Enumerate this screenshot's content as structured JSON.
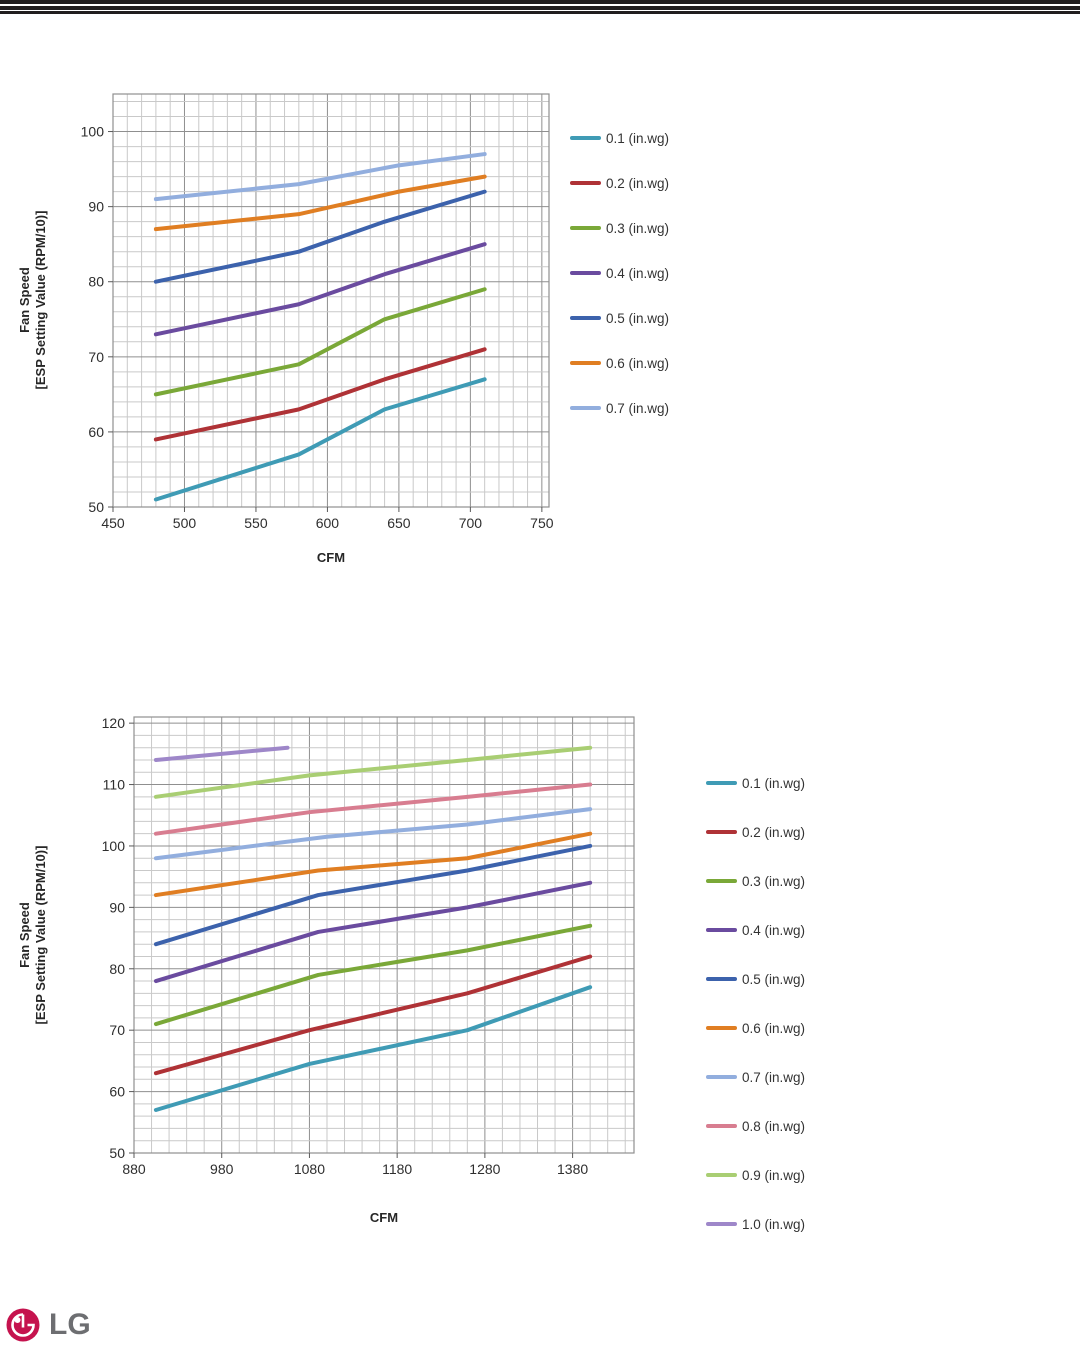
{
  "page": {
    "description": "Fan performance document page with two CFM vs fan-speed line charts and LG logo"
  },
  "logo": {
    "text": "LG",
    "circle_color": "#C5134E",
    "text_color": "#6D6E71"
  },
  "chart_data": [
    {
      "type": "line",
      "title": "",
      "xlabel": "CFM",
      "ylabel_lines": [
        "Fan Speed",
        "[ESP Setting Value (RPM/10)]"
      ],
      "xlim": [
        450,
        755
      ],
      "ylim": [
        50,
        105
      ],
      "x_major": 50,
      "x_minor": 10,
      "y_major": 10,
      "y_minor": 2,
      "x_ticks": [
        450,
        500,
        550,
        600,
        650,
        700,
        750
      ],
      "y_ticks": [
        50,
        60,
        70,
        80,
        90,
        100
      ],
      "grid": "both",
      "legend_position": "right",
      "series": [
        {
          "name": "0.1 (in.wg)",
          "color": "#3F9BB5",
          "points": [
            [
              480,
              51
            ],
            [
              580,
              57
            ],
            [
              640,
              63
            ],
            [
              710,
              67
            ]
          ]
        },
        {
          "name": "0.2 (in.wg)",
          "color": "#AF3236",
          "points": [
            [
              480,
              59
            ],
            [
              580,
              63
            ],
            [
              640,
              67
            ],
            [
              710,
              71
            ]
          ]
        },
        {
          "name": "0.3 (in.wg)",
          "color": "#7AA838",
          "points": [
            [
              480,
              65
            ],
            [
              580,
              69
            ],
            [
              640,
              75
            ],
            [
              710,
              79
            ]
          ]
        },
        {
          "name": "0.4 (in.wg)",
          "color": "#6A4B9F",
          "points": [
            [
              480,
              73
            ],
            [
              580,
              77
            ],
            [
              640,
              81
            ],
            [
              710,
              85
            ]
          ]
        },
        {
          "name": "0.5 (in.wg)",
          "color": "#3C62AC",
          "points": [
            [
              480,
              80
            ],
            [
              580,
              84
            ],
            [
              640,
              88
            ],
            [
              710,
              92
            ]
          ]
        },
        {
          "name": "0.6 (in.wg)",
          "color": "#E07E22",
          "points": [
            [
              480,
              87
            ],
            [
              580,
              89
            ],
            [
              650,
              92
            ],
            [
              710,
              94
            ]
          ]
        },
        {
          "name": "0.7 (in.wg)",
          "color": "#92AEDE",
          "points": [
            [
              480,
              91
            ],
            [
              580,
              93
            ],
            [
              650,
              95.5
            ],
            [
              710,
              97
            ]
          ]
        }
      ]
    },
    {
      "type": "line",
      "title": "",
      "xlabel": "CFM",
      "ylabel_lines": [
        "Fan Speed",
        "[ESP Setting Value (RPM/10)]"
      ],
      "xlim": [
        880,
        1450
      ],
      "ylim": [
        50,
        121
      ],
      "x_major": 100,
      "x_minor": 20,
      "y_major": 10,
      "y_minor": 2,
      "x_ticks": [
        880,
        980,
        1080,
        1180,
        1280,
        1380
      ],
      "y_ticks": [
        50,
        60,
        70,
        80,
        90,
        100,
        110,
        120
      ],
      "grid": "both",
      "legend_position": "right",
      "series": [
        {
          "name": "0.1 (in.wg)",
          "color": "#3F9BB5",
          "points": [
            [
              905,
              57
            ],
            [
              1080,
              64.5
            ],
            [
              1260,
              70
            ],
            [
              1400,
              77
            ]
          ]
        },
        {
          "name": "0.2 (in.wg)",
          "color": "#AF3236",
          "points": [
            [
              905,
              63
            ],
            [
              1080,
              70
            ],
            [
              1260,
              76
            ],
            [
              1400,
              82
            ]
          ]
        },
        {
          "name": "0.3 (in.wg)",
          "color": "#7AA838",
          "points": [
            [
              905,
              71
            ],
            [
              1090,
              79
            ],
            [
              1260,
              83
            ],
            [
              1400,
              87
            ]
          ]
        },
        {
          "name": "0.4 (in.wg)",
          "color": "#6A4B9F",
          "points": [
            [
              905,
              78
            ],
            [
              1090,
              86
            ],
            [
              1260,
              90
            ],
            [
              1400,
              94
            ]
          ]
        },
        {
          "name": "0.5 (in.wg)",
          "color": "#3C62AC",
          "points": [
            [
              905,
              84
            ],
            [
              1090,
              92
            ],
            [
              1260,
              96
            ],
            [
              1400,
              100
            ]
          ]
        },
        {
          "name": "0.6 (in.wg)",
          "color": "#E07E22",
          "points": [
            [
              905,
              92
            ],
            [
              1090,
              96
            ],
            [
              1260,
              98
            ],
            [
              1400,
              102
            ]
          ]
        },
        {
          "name": "0.7 (in.wg)",
          "color": "#92AEDE",
          "points": [
            [
              905,
              98
            ],
            [
              1100,
              101.5
            ],
            [
              1260,
              103.5
            ],
            [
              1400,
              106
            ]
          ]
        },
        {
          "name": "0.8 (in.wg)",
          "color": "#D87D90",
          "points": [
            [
              905,
              102
            ],
            [
              1080,
              105.5
            ],
            [
              1260,
              108
            ],
            [
              1400,
              110
            ]
          ]
        },
        {
          "name": "0.9 (in.wg)",
          "color": "#A9CE73",
          "points": [
            [
              905,
              108
            ],
            [
              1080,
              111.5
            ],
            [
              1260,
              114
            ],
            [
              1400,
              116
            ]
          ]
        },
        {
          "name": "1.0 (in.wg)",
          "color": "#9E87C9",
          "points": [
            [
              905,
              114
            ],
            [
              1055,
              116
            ]
          ]
        }
      ]
    }
  ]
}
